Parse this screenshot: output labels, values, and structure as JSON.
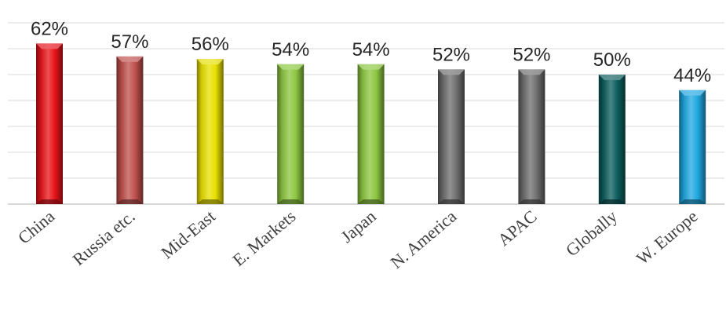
{
  "chart_data": {
    "type": "bar",
    "title": "",
    "xlabel": "",
    "ylabel": "",
    "categories": [
      "China",
      "Russia etc.",
      "Mid-East",
      "E. Markets",
      "Japan",
      "N. America",
      "APAC",
      "Globally",
      "W. Europe"
    ],
    "values": [
      62,
      57,
      56,
      54,
      54,
      52,
      52,
      50,
      44
    ],
    "data_labels": [
      "62%",
      "57%",
      "56%",
      "54%",
      "54%",
      "52%",
      "52%",
      "50%",
      "44%"
    ],
    "value_unit": "%",
    "ylim": [
      0,
      70
    ],
    "grid": true,
    "y_axis_visible": false,
    "legend": "none",
    "bar_colors": [
      "#e8141a",
      "#c0504d",
      "#e8e000",
      "#8cc63f",
      "#8cc63f",
      "#6e6e6e",
      "#6e6e6e",
      "#0d5e5e",
      "#1fa8e0"
    ]
  }
}
